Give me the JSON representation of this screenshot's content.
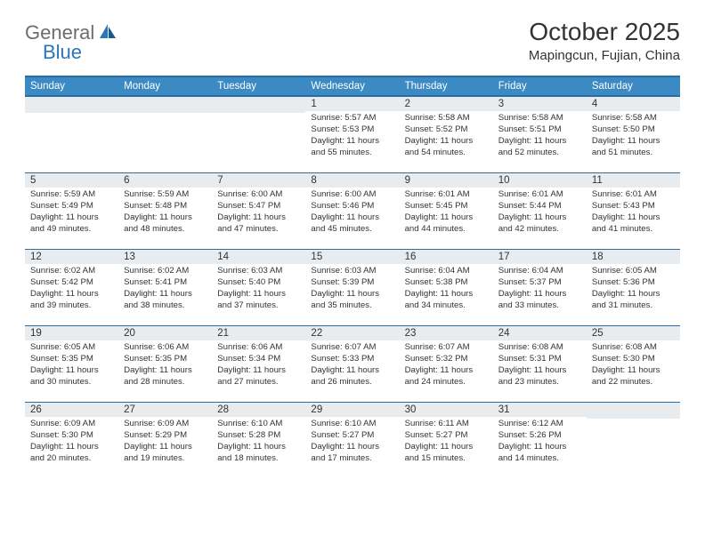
{
  "logo": {
    "general": "General",
    "blue": "Blue"
  },
  "title": "October 2025",
  "location": "Mapingcun, Fujian, China",
  "colors": {
    "header_bg": "#3b8ac4",
    "header_border": "#2b6da3",
    "daynum_bg": "#e8ecef",
    "text": "#333333",
    "logo_gray": "#6d6d6d",
    "logo_blue": "#2b77b9"
  },
  "day_names": [
    "Sunday",
    "Monday",
    "Tuesday",
    "Wednesday",
    "Thursday",
    "Friday",
    "Saturday"
  ],
  "weeks": [
    [
      {
        "blank": true
      },
      {
        "blank": true
      },
      {
        "blank": true
      },
      {
        "day": "1",
        "sunrise": "Sunrise: 5:57 AM",
        "sunset": "Sunset: 5:53 PM",
        "day1": "Daylight: 11 hours",
        "day2": "and 55 minutes."
      },
      {
        "day": "2",
        "sunrise": "Sunrise: 5:58 AM",
        "sunset": "Sunset: 5:52 PM",
        "day1": "Daylight: 11 hours",
        "day2": "and 54 minutes."
      },
      {
        "day": "3",
        "sunrise": "Sunrise: 5:58 AM",
        "sunset": "Sunset: 5:51 PM",
        "day1": "Daylight: 11 hours",
        "day2": "and 52 minutes."
      },
      {
        "day": "4",
        "sunrise": "Sunrise: 5:58 AM",
        "sunset": "Sunset: 5:50 PM",
        "day1": "Daylight: 11 hours",
        "day2": "and 51 minutes."
      }
    ],
    [
      {
        "day": "5",
        "sunrise": "Sunrise: 5:59 AM",
        "sunset": "Sunset: 5:49 PM",
        "day1": "Daylight: 11 hours",
        "day2": "and 49 minutes."
      },
      {
        "day": "6",
        "sunrise": "Sunrise: 5:59 AM",
        "sunset": "Sunset: 5:48 PM",
        "day1": "Daylight: 11 hours",
        "day2": "and 48 minutes."
      },
      {
        "day": "7",
        "sunrise": "Sunrise: 6:00 AM",
        "sunset": "Sunset: 5:47 PM",
        "day1": "Daylight: 11 hours",
        "day2": "and 47 minutes."
      },
      {
        "day": "8",
        "sunrise": "Sunrise: 6:00 AM",
        "sunset": "Sunset: 5:46 PM",
        "day1": "Daylight: 11 hours",
        "day2": "and 45 minutes."
      },
      {
        "day": "9",
        "sunrise": "Sunrise: 6:01 AM",
        "sunset": "Sunset: 5:45 PM",
        "day1": "Daylight: 11 hours",
        "day2": "and 44 minutes."
      },
      {
        "day": "10",
        "sunrise": "Sunrise: 6:01 AM",
        "sunset": "Sunset: 5:44 PM",
        "day1": "Daylight: 11 hours",
        "day2": "and 42 minutes."
      },
      {
        "day": "11",
        "sunrise": "Sunrise: 6:01 AM",
        "sunset": "Sunset: 5:43 PM",
        "day1": "Daylight: 11 hours",
        "day2": "and 41 minutes."
      }
    ],
    [
      {
        "day": "12",
        "sunrise": "Sunrise: 6:02 AM",
        "sunset": "Sunset: 5:42 PM",
        "day1": "Daylight: 11 hours",
        "day2": "and 39 minutes."
      },
      {
        "day": "13",
        "sunrise": "Sunrise: 6:02 AM",
        "sunset": "Sunset: 5:41 PM",
        "day1": "Daylight: 11 hours",
        "day2": "and 38 minutes."
      },
      {
        "day": "14",
        "sunrise": "Sunrise: 6:03 AM",
        "sunset": "Sunset: 5:40 PM",
        "day1": "Daylight: 11 hours",
        "day2": "and 37 minutes."
      },
      {
        "day": "15",
        "sunrise": "Sunrise: 6:03 AM",
        "sunset": "Sunset: 5:39 PM",
        "day1": "Daylight: 11 hours",
        "day2": "and 35 minutes."
      },
      {
        "day": "16",
        "sunrise": "Sunrise: 6:04 AM",
        "sunset": "Sunset: 5:38 PM",
        "day1": "Daylight: 11 hours",
        "day2": "and 34 minutes."
      },
      {
        "day": "17",
        "sunrise": "Sunrise: 6:04 AM",
        "sunset": "Sunset: 5:37 PM",
        "day1": "Daylight: 11 hours",
        "day2": "and 33 minutes."
      },
      {
        "day": "18",
        "sunrise": "Sunrise: 6:05 AM",
        "sunset": "Sunset: 5:36 PM",
        "day1": "Daylight: 11 hours",
        "day2": "and 31 minutes."
      }
    ],
    [
      {
        "day": "19",
        "sunrise": "Sunrise: 6:05 AM",
        "sunset": "Sunset: 5:35 PM",
        "day1": "Daylight: 11 hours",
        "day2": "and 30 minutes."
      },
      {
        "day": "20",
        "sunrise": "Sunrise: 6:06 AM",
        "sunset": "Sunset: 5:35 PM",
        "day1": "Daylight: 11 hours",
        "day2": "and 28 minutes."
      },
      {
        "day": "21",
        "sunrise": "Sunrise: 6:06 AM",
        "sunset": "Sunset: 5:34 PM",
        "day1": "Daylight: 11 hours",
        "day2": "and 27 minutes."
      },
      {
        "day": "22",
        "sunrise": "Sunrise: 6:07 AM",
        "sunset": "Sunset: 5:33 PM",
        "day1": "Daylight: 11 hours",
        "day2": "and 26 minutes."
      },
      {
        "day": "23",
        "sunrise": "Sunrise: 6:07 AM",
        "sunset": "Sunset: 5:32 PM",
        "day1": "Daylight: 11 hours",
        "day2": "and 24 minutes."
      },
      {
        "day": "24",
        "sunrise": "Sunrise: 6:08 AM",
        "sunset": "Sunset: 5:31 PM",
        "day1": "Daylight: 11 hours",
        "day2": "and 23 minutes."
      },
      {
        "day": "25",
        "sunrise": "Sunrise: 6:08 AM",
        "sunset": "Sunset: 5:30 PM",
        "day1": "Daylight: 11 hours",
        "day2": "and 22 minutes."
      }
    ],
    [
      {
        "day": "26",
        "sunrise": "Sunrise: 6:09 AM",
        "sunset": "Sunset: 5:30 PM",
        "day1": "Daylight: 11 hours",
        "day2": "and 20 minutes."
      },
      {
        "day": "27",
        "sunrise": "Sunrise: 6:09 AM",
        "sunset": "Sunset: 5:29 PM",
        "day1": "Daylight: 11 hours",
        "day2": "and 19 minutes."
      },
      {
        "day": "28",
        "sunrise": "Sunrise: 6:10 AM",
        "sunset": "Sunset: 5:28 PM",
        "day1": "Daylight: 11 hours",
        "day2": "and 18 minutes."
      },
      {
        "day": "29",
        "sunrise": "Sunrise: 6:10 AM",
        "sunset": "Sunset: 5:27 PM",
        "day1": "Daylight: 11 hours",
        "day2": "and 17 minutes."
      },
      {
        "day": "30",
        "sunrise": "Sunrise: 6:11 AM",
        "sunset": "Sunset: 5:27 PM",
        "day1": "Daylight: 11 hours",
        "day2": "and 15 minutes."
      },
      {
        "day": "31",
        "sunrise": "Sunrise: 6:12 AM",
        "sunset": "Sunset: 5:26 PM",
        "day1": "Daylight: 11 hours",
        "day2": "and 14 minutes."
      },
      {
        "blank": true
      }
    ]
  ]
}
